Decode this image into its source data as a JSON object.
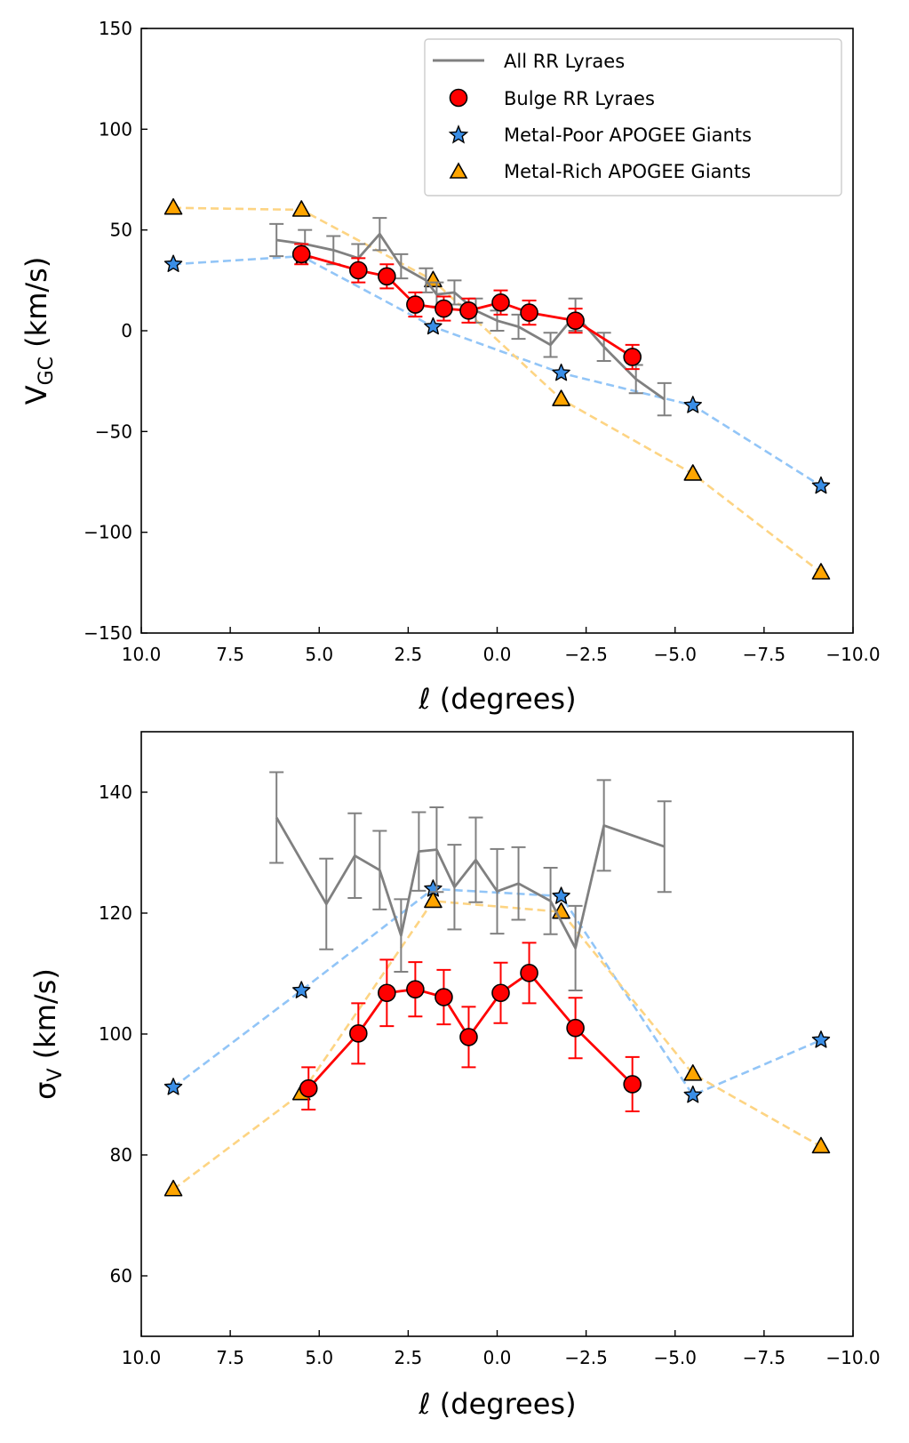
{
  "chart_data": [
    {
      "type": "line",
      "xlabel": "ℓ (degrees)",
      "ylabel_main": "V",
      "ylabel_sub": "GC",
      "ylabel_unit": " (km/s)",
      "xlim": [
        10.0,
        -10.0
      ],
      "ylim": [
        -150,
        150
      ],
      "xticks": [
        10.0,
        7.5,
        5.0,
        2.5,
        0.0,
        -2.5,
        -5.0,
        -7.5,
        -10.0
      ],
      "xtick_labels": [
        "10.0",
        "7.5",
        "5.0",
        "2.5",
        "0.0",
        "−2.5",
        "−5.0",
        "−7.5",
        "−10.0"
      ],
      "yticks": [
        150,
        100,
        50,
        0,
        -50,
        -100,
        -150
      ],
      "ytick_labels": [
        "150",
        "100",
        "50",
        "0",
        "−50",
        "−100",
        "−150"
      ],
      "legend": {
        "position": "upper right",
        "entries": [
          "All RR Lyraes",
          "Bulge RR Lyraes",
          "Metal-Poor APOGEE Giants",
          "Metal-Rich APOGEE Giants"
        ]
      },
      "series": [
        {
          "name": "All RR Lyraes",
          "color": "#808080",
          "style": "solid-errorbar",
          "x": [
            6.2,
            5.4,
            4.6,
            3.9,
            3.3,
            2.7,
            2.0,
            1.7,
            1.2,
            0.6,
            0.0,
            -0.6,
            -1.5,
            -2.2,
            -3.0,
            -3.9,
            -4.7
          ],
          "y": [
            45,
            43,
            40,
            36,
            48,
            32,
            25,
            18,
            19,
            10,
            5,
            2,
            -7,
            8,
            -8,
            -24,
            -34
          ],
          "err": [
            8,
            7,
            7,
            7,
            8,
            6,
            6,
            6,
            6,
            6,
            5,
            6,
            6,
            8,
            7,
            7,
            8
          ]
        },
        {
          "name": "Bulge RR Lyraes",
          "color": "#ff0000",
          "style": "solid-marker-errorbar",
          "x": [
            5.5,
            3.9,
            3.1,
            2.3,
            1.5,
            0.8,
            -0.1,
            -0.9,
            -2.2,
            -3.8
          ],
          "y": [
            38,
            30,
            27,
            13,
            11,
            10,
            14,
            9,
            5,
            -13
          ],
          "err": [
            5,
            6,
            6,
            6,
            6,
            6,
            6,
            6,
            6,
            6
          ]
        },
        {
          "name": "Metal-Poor APOGEE Giants",
          "color": "#92c5f7",
          "marker_color": "#3a8ee6",
          "style": "dashed-star",
          "x": [
            9.1,
            5.5,
            1.8,
            -1.8,
            -5.5,
            -9.1
          ],
          "y": [
            33,
            37,
            2,
            -21,
            -37,
            -77
          ]
        },
        {
          "name": "Metal-Rich APOGEE Giants",
          "color": "#fdd483",
          "marker_color": "#ffa500",
          "style": "dashed-triangle",
          "x": [
            9.1,
            5.5,
            1.8,
            -1.8,
            -5.5,
            -9.1
          ],
          "y": [
            61,
            60,
            25,
            -34,
            -71,
            -120
          ]
        }
      ]
    },
    {
      "type": "line",
      "xlabel": "ℓ (degrees)",
      "ylabel_main": "σ",
      "ylabel_sub": "V",
      "ylabel_unit": " (km/s)",
      "xlim": [
        10.0,
        -10.0
      ],
      "ylim": [
        50,
        150
      ],
      "xticks": [
        10.0,
        7.5,
        5.0,
        2.5,
        0.0,
        -2.5,
        -5.0,
        -7.5,
        -10.0
      ],
      "xtick_labels": [
        "10.0",
        "7.5",
        "5.0",
        "2.5",
        "0.0",
        "−2.5",
        "−5.0",
        "−7.5",
        "−10.0"
      ],
      "yticks": [
        140,
        120,
        100,
        80,
        60
      ],
      "ytick_labels": [
        "140",
        "120",
        "100",
        "80",
        "60"
      ],
      "series": [
        {
          "name": "All RR Lyraes",
          "color": "#808080",
          "style": "solid-errorbar",
          "x": [
            6.2,
            4.8,
            4.0,
            3.3,
            2.7,
            2.2,
            1.7,
            1.2,
            0.6,
            0.0,
            -0.6,
            -1.5,
            -2.2,
            -3.0,
            -4.7
          ],
          "y": [
            135.8,
            121.5,
            129.5,
            127.1,
            116.3,
            130.2,
            130.5,
            124.3,
            128.8,
            123.6,
            124.9,
            122.0,
            114.2,
            134.5,
            131.0
          ],
          "err": [
            7.5,
            7.5,
            7,
            6.5,
            6,
            6.5,
            7,
            7,
            7,
            7,
            6,
            5.5,
            7,
            7.5,
            7.5
          ]
        },
        {
          "name": "Bulge RR Lyraes",
          "color": "#ff0000",
          "style": "solid-marker-errorbar",
          "x": [
            5.3,
            3.9,
            3.1,
            2.3,
            1.5,
            0.8,
            -0.1,
            -0.9,
            -2.2,
            -3.8
          ],
          "y": [
            91.0,
            100.1,
            106.8,
            107.4,
            106.1,
            99.5,
            106.8,
            110.1,
            101.0,
            91.7
          ],
          "err": [
            3.5,
            5,
            5.5,
            4.5,
            4.5,
            5,
            5,
            5,
            5,
            4.5
          ]
        },
        {
          "name": "Metal-Poor APOGEE Giants",
          "color": "#92c5f7",
          "marker_color": "#3a8ee6",
          "style": "dashed-star",
          "x": [
            9.1,
            5.5,
            1.8,
            -1.8,
            -5.5,
            -9.1
          ],
          "y": [
            91.2,
            107.2,
            124.0,
            122.8,
            89.9,
            99.0
          ]
        },
        {
          "name": "Metal-Rich APOGEE Giants",
          "color": "#fdd483",
          "marker_color": "#ffa500",
          "style": "dashed-triangle",
          "x": [
            9.1,
            5.5,
            1.8,
            -1.8,
            -5.5,
            -9.1
          ],
          "y": [
            74.3,
            90.2,
            122.0,
            120.2,
            93.4,
            81.4
          ]
        }
      ]
    }
  ]
}
